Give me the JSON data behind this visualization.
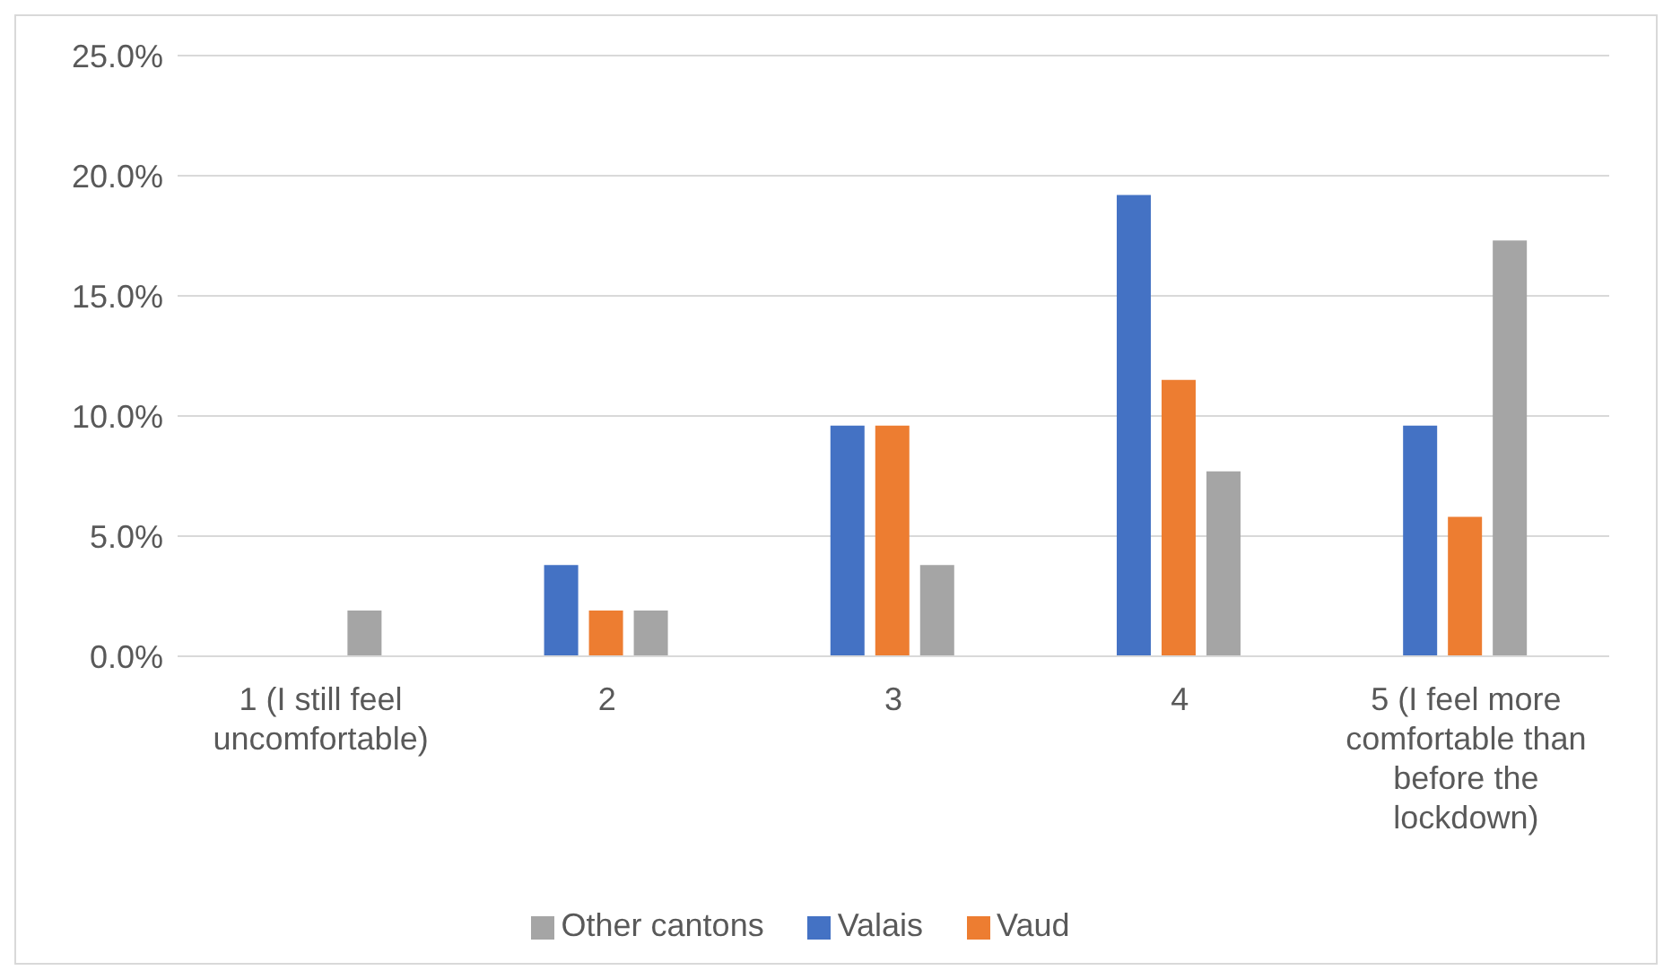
{
  "chart_data": {
    "type": "bar",
    "categories": [
      "1 (I still feel uncomfortable)",
      "2",
      "3",
      "4",
      "5 (I feel more comfortable than before the lockdown)"
    ],
    "series": [
      {
        "name": "Valais",
        "color": "#4472c4",
        "values": [
          0,
          3.8,
          9.6,
          19.2,
          9.6
        ]
      },
      {
        "name": "Vaud",
        "color": "#ed7d31",
        "values": [
          0,
          1.9,
          9.6,
          11.5,
          5.8
        ]
      },
      {
        "name": "Other cantons",
        "color": "#a5a5a5",
        "values": [
          1.9,
          1.9,
          3.8,
          7.7,
          17.3
        ]
      }
    ],
    "ylim": [
      0,
      25
    ],
    "yticks": [
      {
        "value": 0,
        "label": "0.0%"
      },
      {
        "value": 5,
        "label": "5.0%"
      },
      {
        "value": 10,
        "label": "10.0%"
      },
      {
        "value": 15,
        "label": "15.0%"
      },
      {
        "value": 20,
        "label": "20.0%"
      },
      {
        "value": 25,
        "label": "25.0%"
      }
    ],
    "grid": "y",
    "legend": "bottom"
  }
}
